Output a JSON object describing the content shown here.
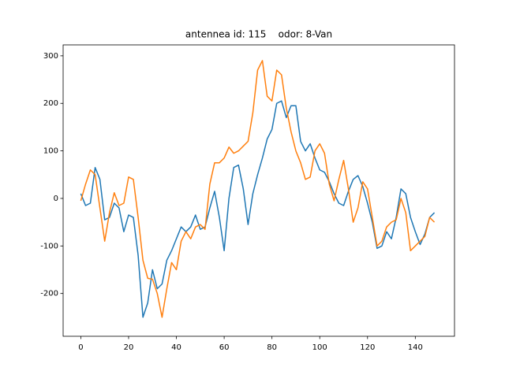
{
  "chart_data": {
    "type": "line",
    "title": "antennea id: 115    odor: 8-Van",
    "x": [
      0,
      2,
      4,
      6,
      8,
      10,
      12,
      14,
      16,
      18,
      20,
      22,
      24,
      26,
      28,
      30,
      32,
      34,
      36,
      38,
      40,
      42,
      44,
      46,
      48,
      50,
      52,
      54,
      56,
      58,
      60,
      62,
      64,
      66,
      68,
      70,
      72,
      74,
      76,
      78,
      80,
      82,
      84,
      86,
      88,
      90,
      92,
      94,
      96,
      98,
      100,
      102,
      104,
      106,
      108,
      110,
      112,
      114,
      116,
      118,
      120,
      122,
      124,
      126,
      128,
      130,
      132,
      134,
      136,
      138,
      140,
      142,
      144,
      146,
      148
    ],
    "series": [
      {
        "color": "#1f77b4",
        "values": [
          10,
          -15,
          -10,
          65,
          40,
          -45,
          -40,
          -10,
          -20,
          -70,
          -35,
          -40,
          -120,
          -250,
          -220,
          -150,
          -190,
          -180,
          -130,
          -110,
          -85,
          -60,
          -70,
          -60,
          -35,
          -65,
          -60,
          -20,
          15,
          -40,
          -110,
          0,
          65,
          70,
          20,
          -55,
          10,
          50,
          85,
          125,
          145,
          200,
          205,
          170,
          195,
          195,
          120,
          100,
          115,
          85,
          60,
          55,
          35,
          10,
          -10,
          -15,
          15,
          40,
          48,
          25,
          -10,
          -50,
          -105,
          -100,
          -70,
          -85,
          -40,
          20,
          10,
          -40,
          -70,
          -97,
          -75,
          -40,
          -30
        ]
      },
      {
        "color": "#ff7f0e",
        "values": [
          -5,
          30,
          60,
          50,
          -20,
          -90,
          -30,
          12,
          -15,
          -10,
          45,
          40,
          -40,
          -130,
          -168,
          -170,
          -200,
          -250,
          -190,
          -135,
          -150,
          -90,
          -70,
          -85,
          -60,
          -55,
          -65,
          30,
          75,
          75,
          85,
          108,
          95,
          100,
          110,
          120,
          180,
          270,
          290,
          215,
          205,
          270,
          260,
          190,
          140,
          100,
          75,
          40,
          45,
          100,
          115,
          95,
          30,
          -5,
          40,
          80,
          20,
          -50,
          -20,
          35,
          20,
          -40,
          -100,
          -90,
          -60,
          -50,
          -45,
          0,
          -30,
          -110,
          -100,
          -90,
          -80,
          -40,
          -50
        ]
      }
    ],
    "xlim": [
      -7.4,
      156.4
    ],
    "ylim": [
      -290,
      323
    ],
    "xticks": [
      0,
      20,
      40,
      60,
      80,
      100,
      120,
      140
    ],
    "yticks": [
      -200,
      -100,
      0,
      100,
      200,
      300
    ]
  }
}
